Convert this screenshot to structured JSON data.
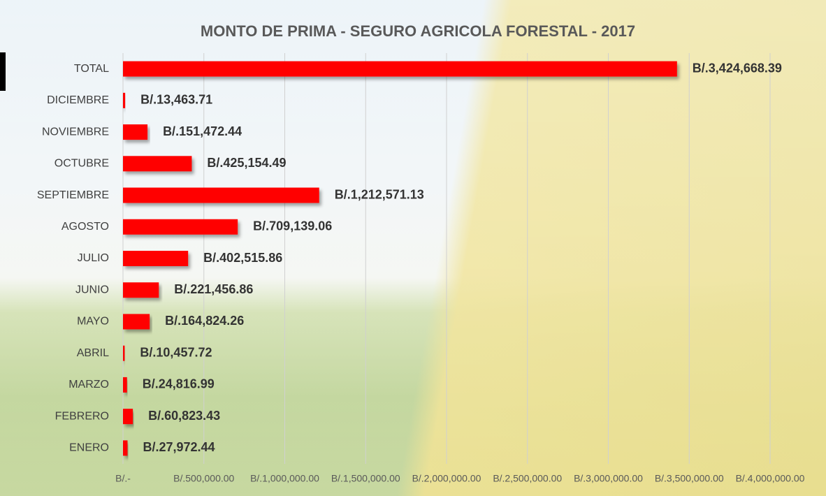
{
  "chart_data": {
    "type": "bar",
    "orientation": "horizontal",
    "title": "MONTO DE PRIMA - SEGURO AGRICOLA FORESTAL - 2017",
    "categories": [
      "TOTAL",
      "DICIEMBRE",
      "NOVIEMBRE",
      "OCTUBRE",
      "SEPTIEMBRE",
      "AGOSTO",
      "JULIO",
      "JUNIO",
      "MAYO",
      "ABRIL",
      "MARZO",
      "FEBRERO",
      "ENERO"
    ],
    "values": [
      3424668.39,
      13463.71,
      151472.44,
      425154.49,
      1212571.13,
      709139.06,
      402515.86,
      221456.86,
      164824.26,
      10457.72,
      24816.99,
      60823.43,
      27972.44
    ],
    "value_labels": [
      "B/.3,424,668.39",
      "B/.13,463.71",
      "B/.151,472.44",
      "B/.425,154.49",
      "B/.1,212,571.13",
      "B/.709,139.06",
      "B/.402,515.86",
      "B/.221,456.86",
      "B/.164,824.26",
      "B/.10,457.72",
      "B/.24,816.99",
      "B/.60,823.43",
      "B/.27,972.44"
    ],
    "color": "#ff0000",
    "xlim": [
      0,
      4000000
    ],
    "xticks": [
      {
        "value": 0,
        "label": "B/.-"
      },
      {
        "value": 500000,
        "label": "B/.500,000.00"
      },
      {
        "value": 1000000,
        "label": "B/.1,000,000.00"
      },
      {
        "value": 1500000,
        "label": "B/.1,500,000.00"
      },
      {
        "value": 2000000,
        "label": "B/.2,000,000.00"
      },
      {
        "value": 2500000,
        "label": "B/.2,500,000.00"
      },
      {
        "value": 3000000,
        "label": "B/.3,000,000.00"
      },
      {
        "value": 3500000,
        "label": "B/.3,500,000.00"
      },
      {
        "value": 4000000,
        "label": "B/.4,000,000.00"
      }
    ],
    "grid": true
  }
}
